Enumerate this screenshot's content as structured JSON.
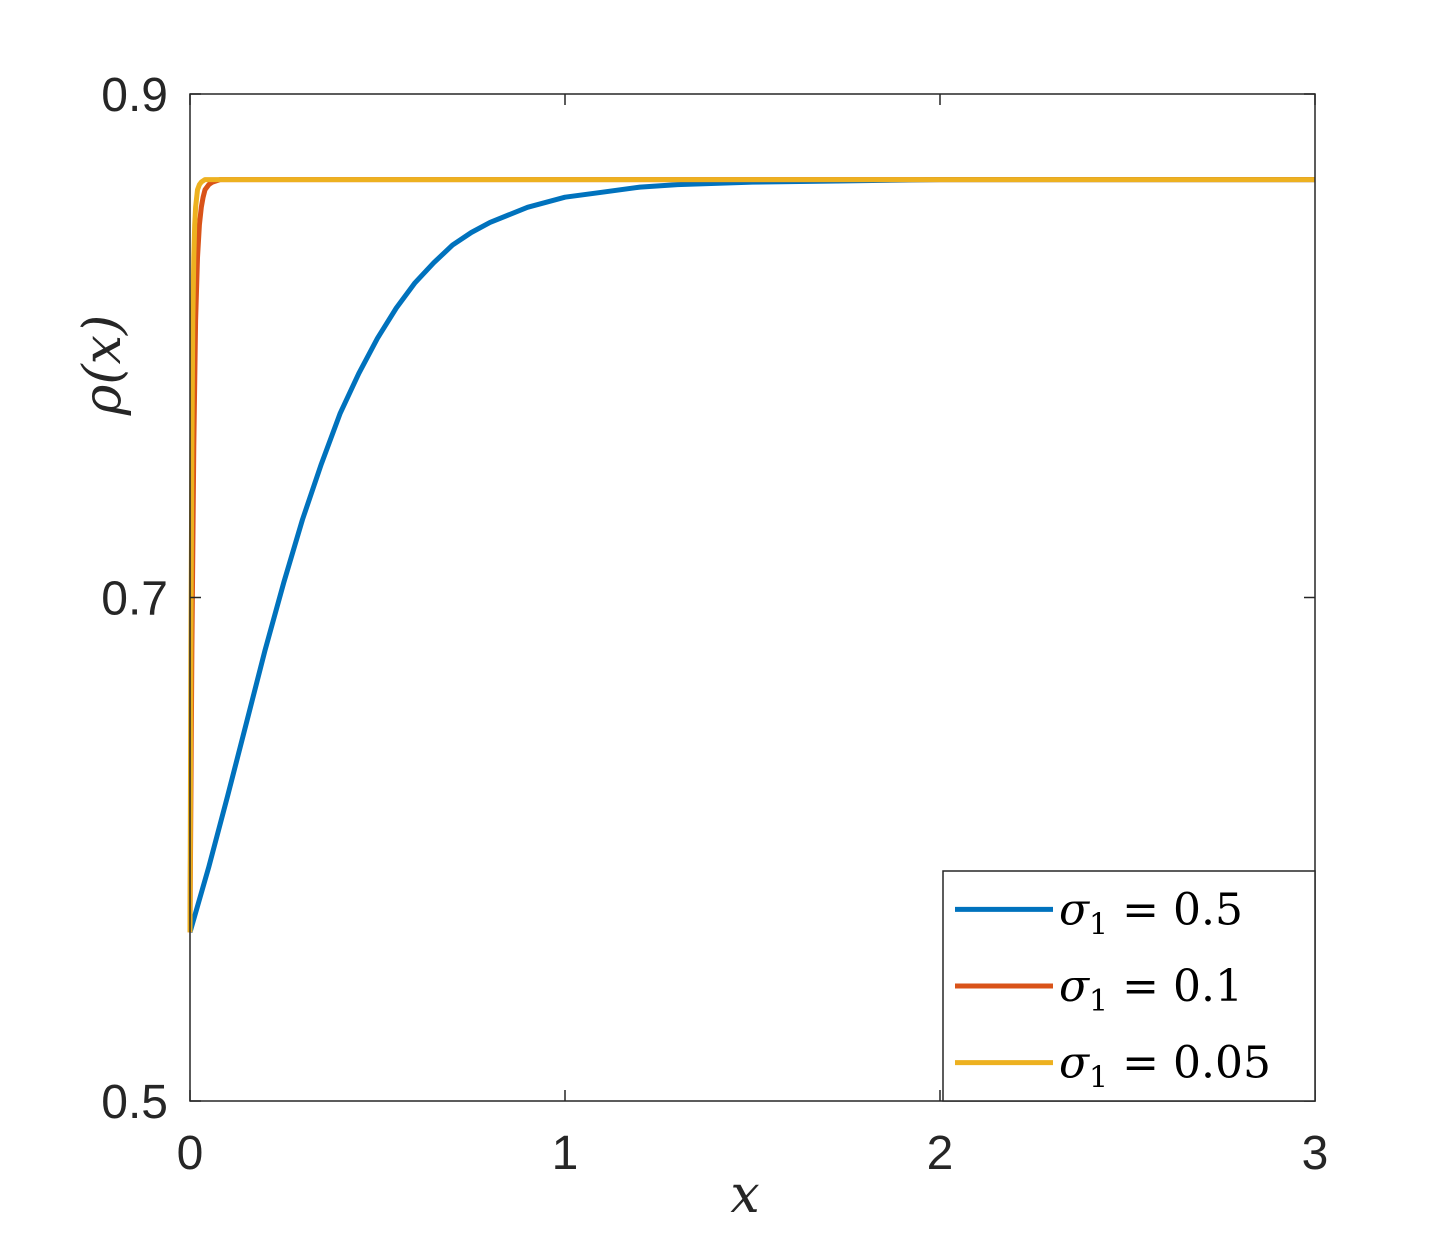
{
  "chart_data": {
    "type": "line",
    "title": "",
    "xlabel": "x",
    "ylabel": "ρ(x)",
    "xlim": [
      0,
      3
    ],
    "ylim": [
      0.5,
      0.9
    ],
    "xticks": [
      0,
      1,
      2,
      3
    ],
    "xtick_labels": [
      "0",
      "1",
      "2",
      "3"
    ],
    "yticks": [
      0.5,
      0.7,
      0.9
    ],
    "ytick_labels": [
      "0.5",
      "0.7",
      "0.9"
    ],
    "grid": false,
    "legend_position": "bottom-right",
    "series": [
      {
        "name": "σ1 = 0.5",
        "legend": {
          "symbol": "σ",
          "subscript": "1",
          "rest": " = 0.5"
        },
        "color": "#0072BD",
        "x": [
          0,
          0.05,
          0.1,
          0.15,
          0.2,
          0.25,
          0.3,
          0.35,
          0.4,
          0.45,
          0.5,
          0.55,
          0.6,
          0.65,
          0.7,
          0.75,
          0.8,
          0.9,
          1.0,
          1.1,
          1.2,
          1.3,
          1.4,
          1.5,
          1.75,
          2.0,
          2.5,
          3.0
        ],
        "y": [
          0.567,
          0.593,
          0.621,
          0.65,
          0.679,
          0.706,
          0.731,
          0.753,
          0.773,
          0.789,
          0.803,
          0.815,
          0.825,
          0.833,
          0.84,
          0.845,
          0.849,
          0.855,
          0.859,
          0.861,
          0.863,
          0.864,
          0.8645,
          0.865,
          0.8655,
          0.866,
          0.866,
          0.866
        ]
      },
      {
        "name": "σ1 = 0.1",
        "legend": {
          "symbol": "σ",
          "subscript": "1",
          "rest": " = 0.1"
        },
        "color": "#D95319",
        "x": [
          0,
          0.005,
          0.01,
          0.015,
          0.02,
          0.025,
          0.03,
          0.035,
          0.04,
          0.05,
          0.06,
          0.08,
          0.1,
          3.0
        ],
        "y": [
          0.567,
          0.68,
          0.76,
          0.81,
          0.835,
          0.848,
          0.855,
          0.859,
          0.862,
          0.864,
          0.865,
          0.866,
          0.866,
          0.866
        ]
      },
      {
        "name": "σ1 = 0.05",
        "legend": {
          "symbol": "σ",
          "subscript": "1",
          "rest": " = 0.05"
        },
        "color": "#EDB120",
        "x": [
          0,
          0.0025,
          0.005,
          0.0075,
          0.01,
          0.0125,
          0.015,
          0.02,
          0.025,
          0.03,
          0.04,
          0.05,
          3.0
        ],
        "y": [
          0.567,
          0.68,
          0.76,
          0.81,
          0.835,
          0.848,
          0.855,
          0.862,
          0.864,
          0.865,
          0.866,
          0.866,
          0.866
        ]
      }
    ]
  }
}
